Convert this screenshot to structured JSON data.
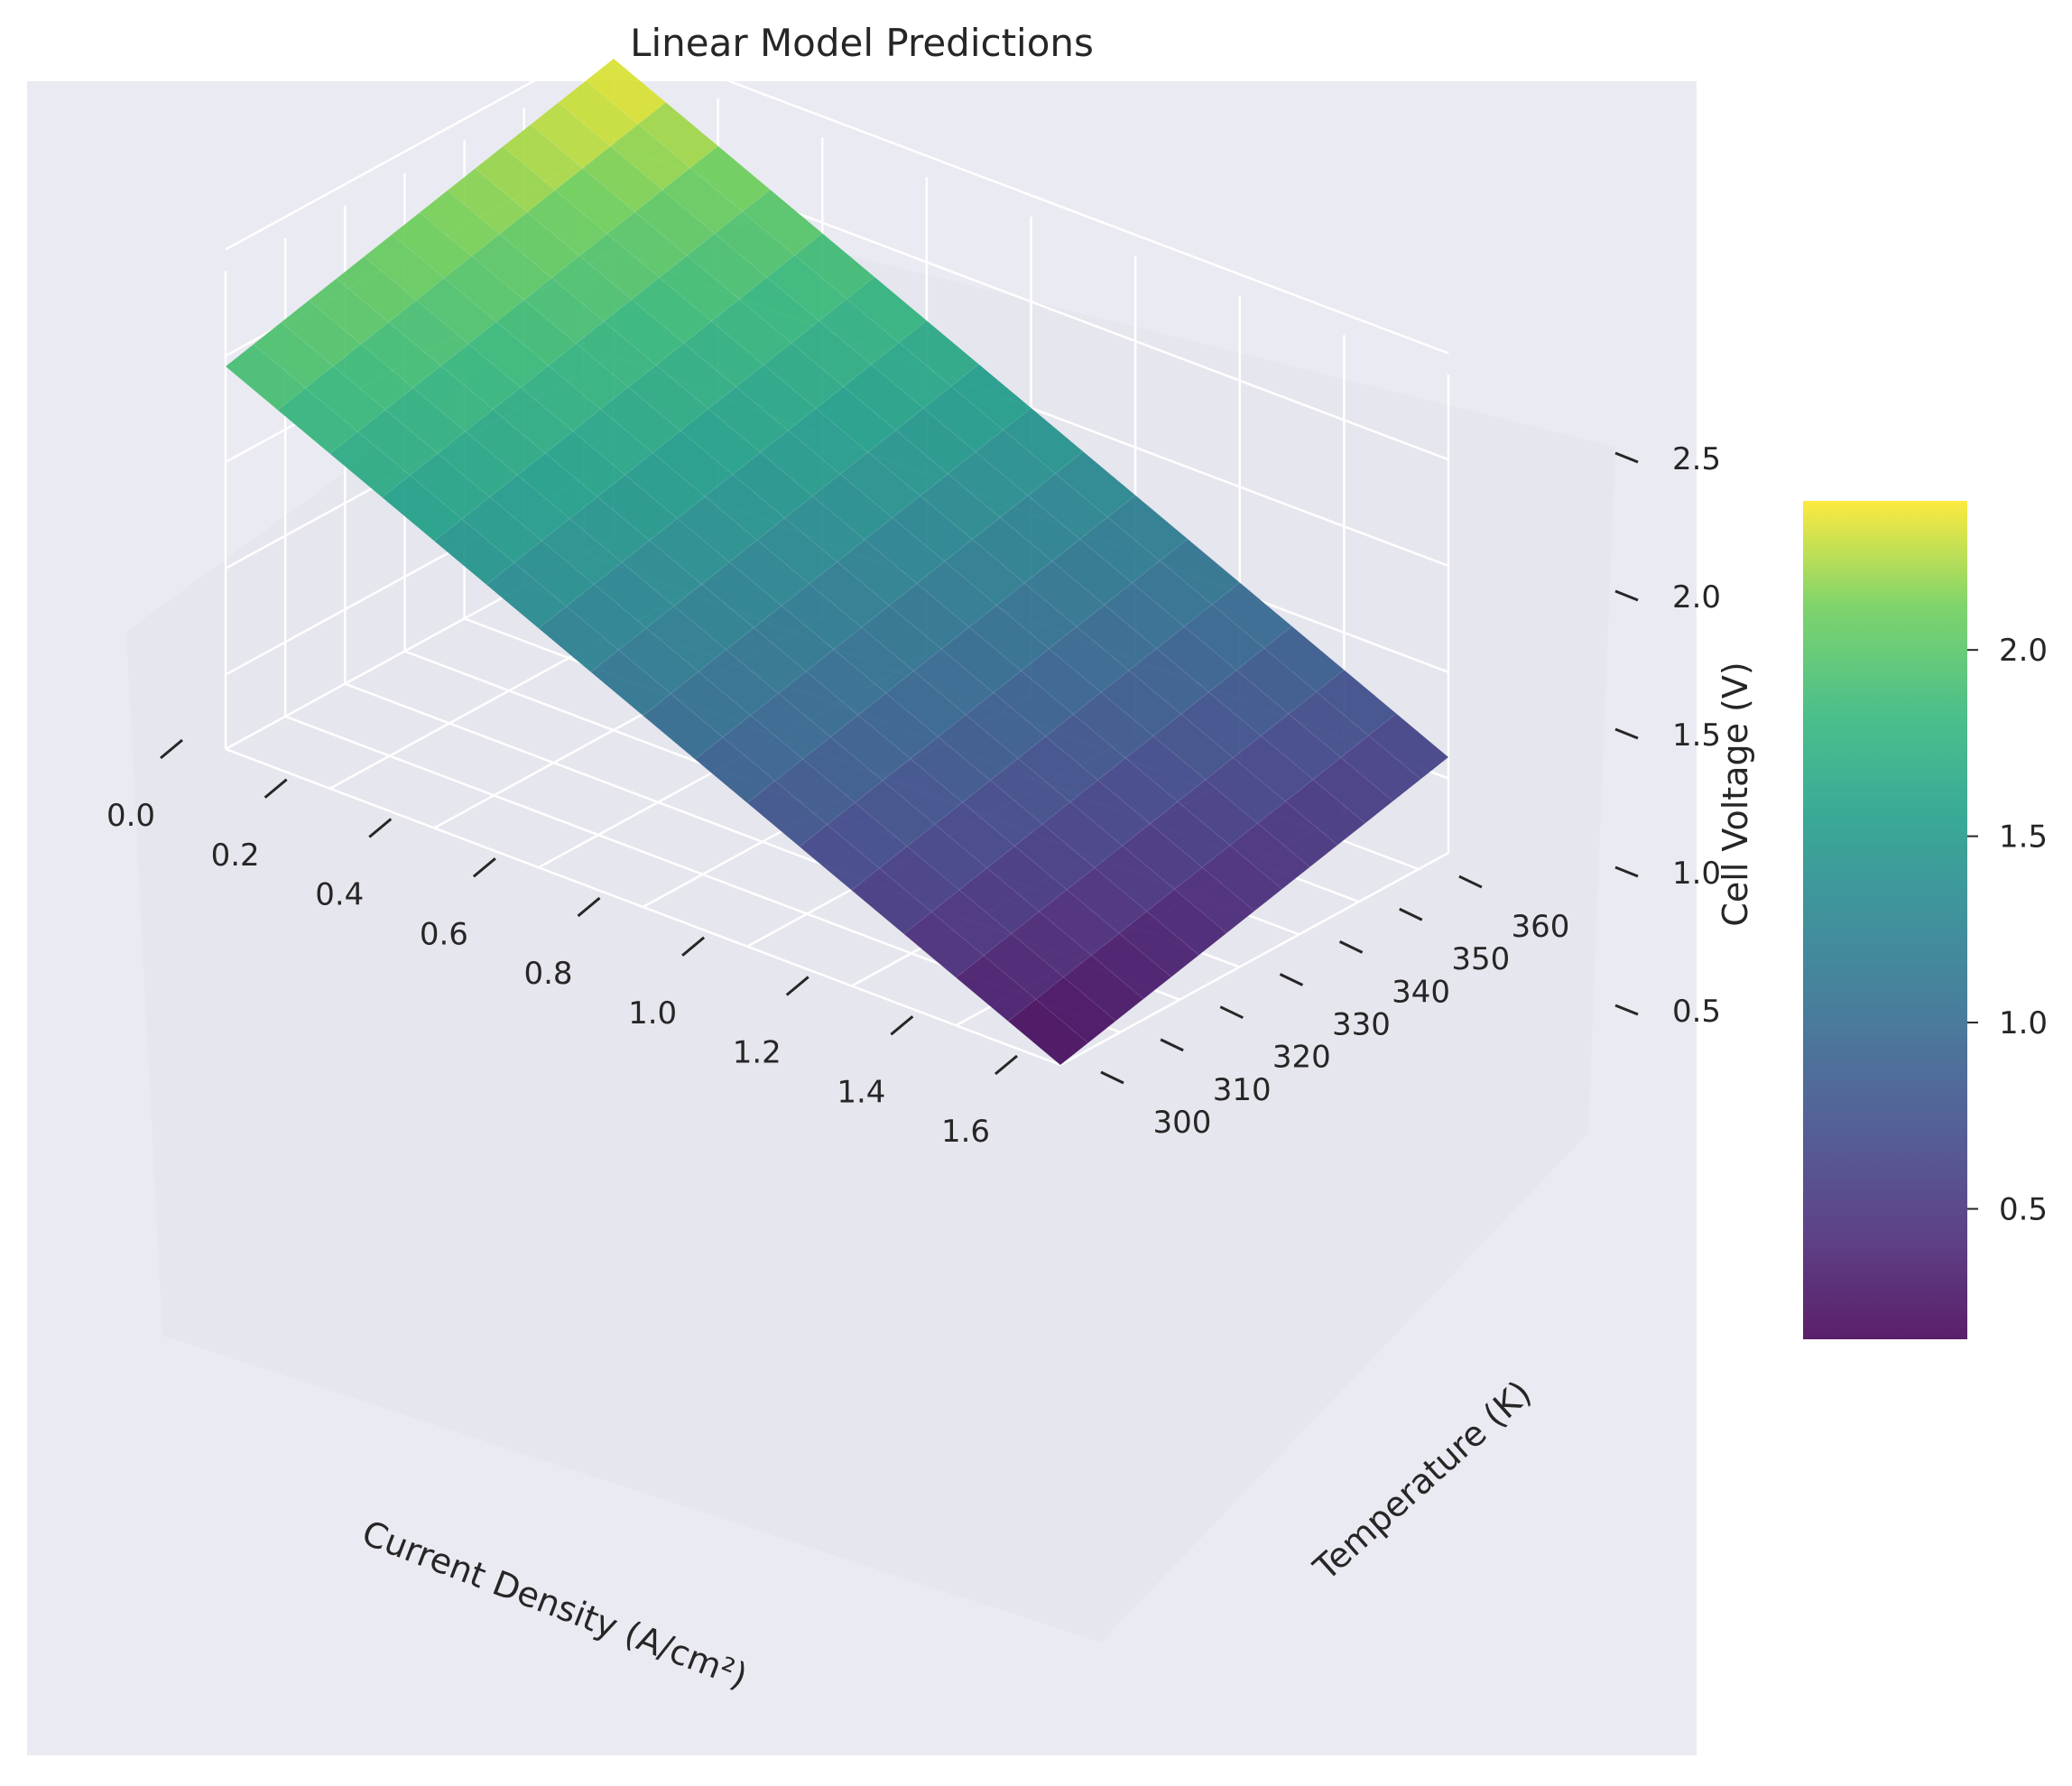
{
  "chart_data": {
    "type": "surface3d",
    "title": "Linear Model Predictions",
    "xlabel": "Current Density (A/cm²)",
    "ylabel": "Temperature (K)",
    "zlabel": "Cell Voltage (V)",
    "xlim": [
      0.0,
      1.6
    ],
    "ylim": [
      300,
      365
    ],
    "zlim": [
      0.15,
      2.4
    ],
    "x_ticks": [
      "0.0",
      "0.2",
      "0.4",
      "0.6",
      "0.8",
      "1.0",
      "1.2",
      "1.4",
      "1.6"
    ],
    "y_ticks": [
      "300",
      "310",
      "320",
      "330",
      "340",
      "350",
      "360"
    ],
    "z_ticks": [
      "0.5",
      "1.0",
      "1.5",
      "2.0",
      "2.5"
    ],
    "colormap": "viridis",
    "colorbar_ticks": [
      "0.5",
      "1.0",
      "1.5",
      "2.0"
    ],
    "colorbar_range": [
      0.15,
      2.4
    ],
    "corners": [
      {
        "x": 0.0,
        "y": 300,
        "z": 1.95
      },
      {
        "x": 0.0,
        "y": 365,
        "z": 2.4
      },
      {
        "x": 1.6,
        "y": 300,
        "z": 0.15
      },
      {
        "x": 1.6,
        "y": 365,
        "z": 0.6
      }
    ],
    "grid_on": true,
    "background": "#eaeaf2"
  }
}
